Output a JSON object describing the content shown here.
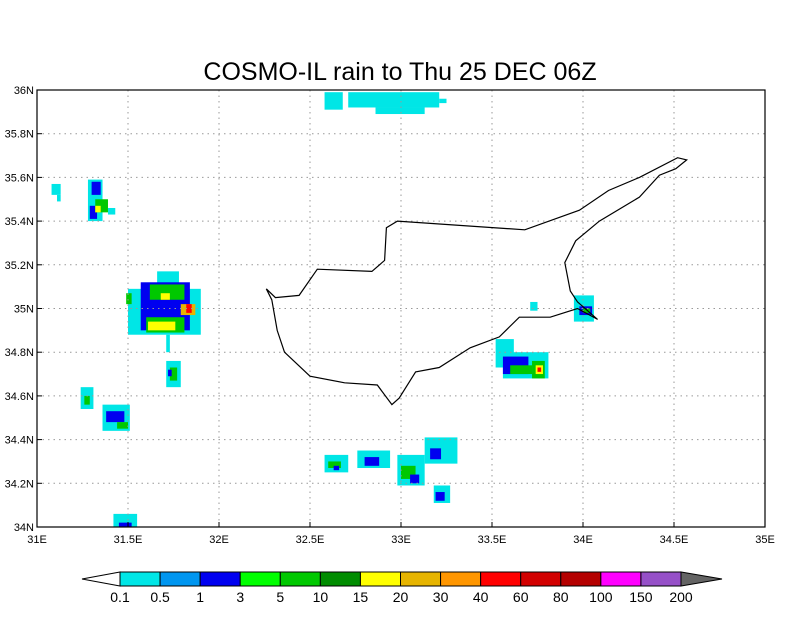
{
  "title": "COSMO-IL rain to Thu 25 DEC 06Z",
  "map": {
    "lon_range": [
      31,
      35
    ],
    "lat_range": [
      34,
      36
    ],
    "lon_ticks": [
      {
        "v": 31,
        "label": "31E"
      },
      {
        "v": 31.5,
        "label": "31.5E"
      },
      {
        "v": 32,
        "label": "32E"
      },
      {
        "v": 32.5,
        "label": "32.5E"
      },
      {
        "v": 33,
        "label": "33E"
      },
      {
        "v": 33.5,
        "label": "33.5E"
      },
      {
        "v": 34,
        "label": "34E"
      },
      {
        "v": 34.5,
        "label": "34.5E"
      },
      {
        "v": 35,
        "label": "35E"
      }
    ],
    "lat_ticks": [
      {
        "v": 34,
        "label": "34N"
      },
      {
        "v": 34.2,
        "label": "34.2N"
      },
      {
        "v": 34.4,
        "label": "34.4N"
      },
      {
        "v": 34.6,
        "label": "34.6N"
      },
      {
        "v": 34.8,
        "label": "34.8N"
      },
      {
        "v": 35,
        "label": "35N"
      },
      {
        "v": 35.2,
        "label": "35.2N"
      },
      {
        "v": 35.4,
        "label": "35.4N"
      },
      {
        "v": 35.6,
        "label": "35.6N"
      },
      {
        "v": 35.8,
        "label": "35.8N"
      },
      {
        "v": 36,
        "label": "36N"
      }
    ],
    "coastline": [
      [
        32.26,
        35.09
      ],
      [
        32.31,
        35.05
      ],
      [
        32.44,
        35.06
      ],
      [
        32.54,
        35.18
      ],
      [
        32.84,
        35.17
      ],
      [
        32.91,
        35.22
      ],
      [
        32.92,
        35.37
      ],
      [
        32.98,
        35.4
      ],
      [
        33.68,
        35.36
      ],
      [
        33.98,
        35.45
      ],
      [
        34.14,
        35.54
      ],
      [
        34.31,
        35.6
      ],
      [
        34.52,
        35.69
      ],
      [
        34.57,
        35.68
      ],
      [
        34.51,
        35.64
      ],
      [
        34.42,
        35.61
      ],
      [
        34.31,
        35.51
      ],
      [
        34.09,
        35.4
      ],
      [
        33.96,
        35.31
      ],
      [
        33.9,
        35.21
      ],
      [
        33.93,
        35.08
      ],
      [
        33.97,
        35.03
      ],
      [
        34.08,
        34.95
      ],
      [
        33.97,
        35.0
      ],
      [
        33.82,
        34.96
      ],
      [
        33.65,
        34.96
      ],
      [
        33.54,
        34.87
      ],
      [
        33.38,
        34.82
      ],
      [
        33.21,
        34.73
      ],
      [
        33.08,
        34.71
      ],
      [
        32.99,
        34.59
      ],
      [
        32.95,
        34.56
      ],
      [
        32.87,
        34.65
      ],
      [
        32.69,
        34.66
      ],
      [
        32.5,
        34.69
      ],
      [
        32.36,
        34.8
      ],
      [
        32.32,
        34.9
      ],
      [
        32.29,
        35.04
      ],
      [
        32.26,
        35.09
      ]
    ],
    "rain_cells": [
      [
        32.58,
        35.91,
        32.68,
        35.99,
        0
      ],
      [
        32.71,
        35.92,
        33.21,
        35.99,
        0
      ],
      [
        32.86,
        35.89,
        33.13,
        35.92,
        0
      ],
      [
        33.21,
        35.94,
        33.25,
        35.96,
        0
      ],
      [
        31.08,
        35.52,
        31.13,
        35.57,
        0
      ],
      [
        31.11,
        35.49,
        31.13,
        35.52,
        0
      ],
      [
        31.28,
        35.4,
        31.36,
        35.59,
        0
      ],
      [
        31.3,
        35.52,
        31.35,
        35.58,
        2
      ],
      [
        31.29,
        35.41,
        31.33,
        35.47,
        2
      ],
      [
        31.32,
        35.44,
        31.39,
        35.5,
        4
      ],
      [
        31.32,
        35.44,
        31.35,
        35.47,
        6
      ],
      [
        31.39,
        35.43,
        31.43,
        35.46,
        0
      ],
      [
        31.66,
        35.09,
        31.78,
        35.17,
        0
      ],
      [
        31.5,
        34.88,
        31.9,
        35.09,
        0
      ],
      [
        31.57,
        34.9,
        31.84,
        35.12,
        2
      ],
      [
        31.62,
        35.04,
        31.81,
        35.11,
        4
      ],
      [
        31.68,
        35.04,
        31.73,
        35.07,
        6
      ],
      [
        31.61,
        34.96,
        31.79,
        34.99,
        2
      ],
      [
        31.6,
        34.89,
        31.81,
        34.96,
        4
      ],
      [
        31.61,
        34.9,
        31.76,
        34.94,
        6
      ],
      [
        31.79,
        34.97,
        31.87,
        35.02,
        7
      ],
      [
        31.82,
        34.98,
        31.85,
        35.02,
        9
      ],
      [
        31.71,
        34.8,
        31.73,
        34.88,
        0
      ],
      [
        31.49,
        35.02,
        31.52,
        35.07,
        4
      ],
      [
        31.71,
        34.64,
        31.79,
        34.76,
        0
      ],
      [
        31.73,
        34.67,
        31.77,
        34.73,
        4
      ],
      [
        31.72,
        34.69,
        31.74,
        34.72,
        2
      ],
      [
        31.24,
        34.54,
        31.31,
        34.64,
        0
      ],
      [
        31.26,
        34.56,
        31.29,
        34.6,
        4
      ],
      [
        31.36,
        34.44,
        31.51,
        34.56,
        0
      ],
      [
        31.38,
        34.48,
        31.48,
        34.53,
        2
      ],
      [
        31.44,
        34.45,
        31.5,
        34.48,
        4
      ],
      [
        31.42,
        34.0,
        31.55,
        34.06,
        0
      ],
      [
        31.45,
        34.0,
        31.52,
        34.02,
        2
      ],
      [
        32.58,
        34.25,
        32.71,
        34.33,
        0
      ],
      [
        32.6,
        34.27,
        32.67,
        34.3,
        4
      ],
      [
        32.63,
        34.26,
        32.66,
        34.28,
        2
      ],
      [
        32.76,
        34.27,
        32.94,
        34.35,
        0
      ],
      [
        32.8,
        34.28,
        32.88,
        34.32,
        2
      ],
      [
        32.98,
        34.19,
        33.13,
        34.33,
        0
      ],
      [
        33.0,
        34.22,
        33.08,
        34.28,
        4
      ],
      [
        33.05,
        34.2,
        33.1,
        34.24,
        2
      ],
      [
        33.13,
        34.29,
        33.31,
        34.41,
        0
      ],
      [
        33.16,
        34.31,
        33.22,
        34.36,
        2
      ],
      [
        33.18,
        34.11,
        33.27,
        34.19,
        0
      ],
      [
        33.19,
        34.12,
        33.24,
        34.16,
        2
      ],
      [
        33.71,
        34.99,
        33.75,
        35.03,
        0
      ],
      [
        33.95,
        34.94,
        34.06,
        35.06,
        0
      ],
      [
        33.98,
        34.97,
        34.05,
        35.01,
        2
      ],
      [
        34.0,
        34.98,
        34.04,
        35.0,
        4
      ],
      [
        33.52,
        34.73,
        33.62,
        34.86,
        0
      ],
      [
        33.56,
        34.68,
        33.81,
        34.8,
        0
      ],
      [
        33.56,
        34.7,
        33.7,
        34.78,
        2
      ],
      [
        33.6,
        34.7,
        33.72,
        34.74,
        4
      ],
      [
        33.72,
        34.68,
        33.79,
        34.76,
        4
      ],
      [
        33.74,
        34.7,
        33.78,
        34.74,
        6
      ],
      [
        33.75,
        34.71,
        33.77,
        34.73,
        9
      ]
    ]
  },
  "colorbar": {
    "labels": [
      "0.1",
      "0.5",
      "1",
      "3",
      "5",
      "10",
      "15",
      "20",
      "30",
      "40",
      "60",
      "80",
      "100",
      "150",
      "200"
    ],
    "colors": [
      "#00e6e6",
      "#0096f0",
      "#0000f0",
      "#00ff00",
      "#00c800",
      "#008c00",
      "#ffff00",
      "#e6b400",
      "#ff9600",
      "#ff0000",
      "#d20000",
      "#b40000",
      "#ff00ff",
      "#9650c8"
    ],
    "under_color": "#ffffff",
    "over_color": "#646464"
  }
}
